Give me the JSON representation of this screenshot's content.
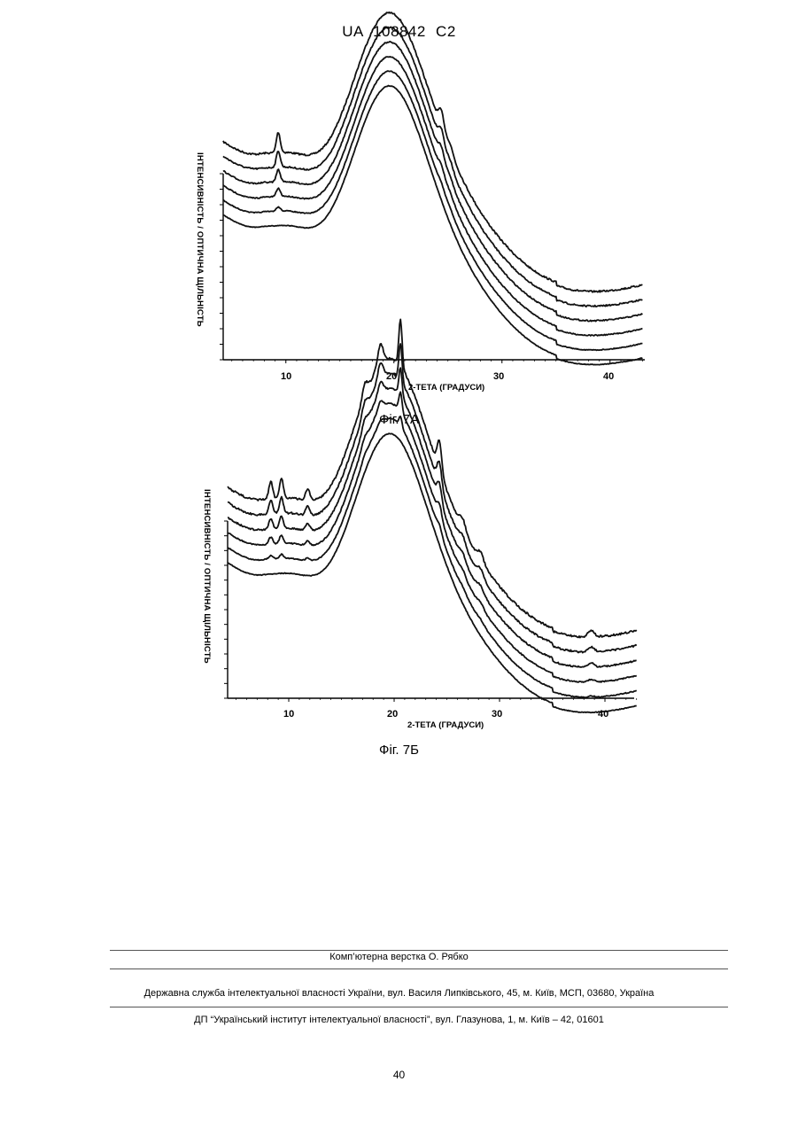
{
  "header": {
    "text": "UA   108842   C2"
  },
  "figures": [
    {
      "caption": "Фіг. 7А",
      "ylabel": "ІНТЕНСИВНІСТЬ / ОПТИЧНА ЩІЛЬНІСТЬ",
      "xlabel": "2-ТЕТА (ГРАДУСИ)",
      "xticks": [
        "10",
        "20",
        "30",
        "40"
      ]
    },
    {
      "caption": "Фіг. 7Б",
      "ylabel": "ІНТЕНСИВНІСТЬ / ОПТИЧНА ЩІЛЬНІСТЬ",
      "xlabel": "2-ТЕТА (ГРАДУСИ)",
      "xticks": [
        "10",
        "20",
        "30",
        "40"
      ]
    }
  ],
  "footer": {
    "line1": "Комп’ютерна верстка О. Рябко",
    "line2": "Державна служба інтелектуальної власності України, вул. Василя Липківського, 45, м. Київ, МСП, 03680, Україна",
    "line3": "ДП “Український інститут інтелектуальної власності”, вул. Глазунова, 1, м. Київ – 42, 01601"
  },
  "page_number": "40"
}
